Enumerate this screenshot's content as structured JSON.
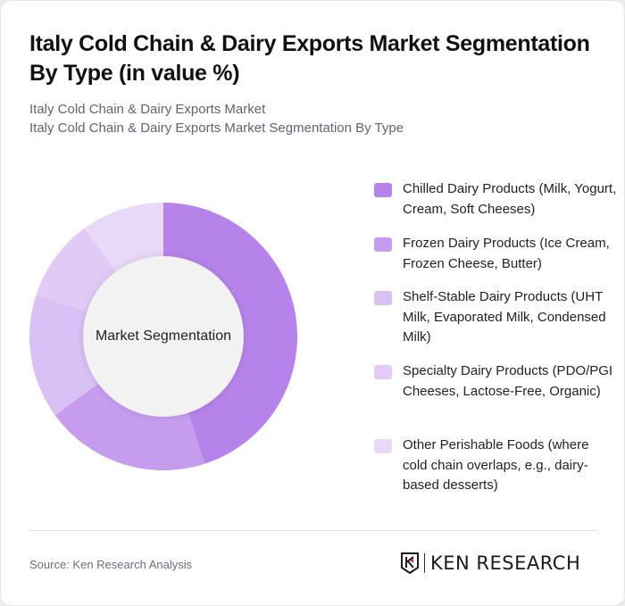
{
  "header": {
    "title": "Italy Cold Chain & Dairy Exports Market Segmentation By Type (in value %)",
    "subtitle_1": "Italy Cold Chain & Dairy Exports Market",
    "subtitle_2": "Italy Cold Chain & Dairy Exports Market Segmentation By Type"
  },
  "donut": {
    "center_label": "Market Segmentation"
  },
  "legend": {
    "items": [
      {
        "label": "Chilled Dairy Products (Milk, Yogurt, Cream, Soft Cheeses)",
        "color": "#b583ea"
      },
      {
        "label": "Frozen Dairy Products (Ice Cream, Frozen Cheese, Butter)",
        "color": "#c59cee"
      },
      {
        "label": "Shelf-Stable Dairy Products (UHT Milk, Evaporated Milk, Condensed Milk)",
        "color": "#d9c0f5"
      },
      {
        "label": "Specialty Dairy Products (PDO/PGI Cheeses, Lactose-Free, Organic)",
        "color": "#e1cbf6"
      },
      {
        "label": "Other Perishable Foods (where cold chain overlaps, e.g., dairy-based desserts)",
        "color": "#e8d9f9"
      }
    ]
  },
  "footer": {
    "source": "Source: Ken Research Analysis",
    "logo_text": "KEN RESEARCH"
  },
  "chart_data": {
    "type": "pie",
    "title": "Italy Cold Chain & Dairy Exports Market Segmentation By Type (in value %)",
    "subtitle": "Italy Cold Chain & Dairy Exports Market Segmentation By Type",
    "center_label": "Market Segmentation",
    "donut": true,
    "categories": [
      "Chilled Dairy Products (Milk, Yogurt, Cream, Soft Cheeses)",
      "Frozen Dairy Products (Ice Cream, Frozen Cheese, Butter)",
      "Shelf-Stable Dairy Products (UHT Milk, Evaporated Milk, Condensed Milk)",
      "Specialty Dairy Products (PDO/PGI Cheeses, Lactose-Free, Organic)",
      "Other Perishable Foods (where cold chain overlaps, e.g., dairy-based desserts)"
    ],
    "values": [
      45,
      20,
      15,
      10,
      10
    ],
    "colors": [
      "#b583ea",
      "#c59cee",
      "#d9c0f5",
      "#e1cbf6",
      "#e8d9f9"
    ],
    "unit": "%",
    "legend_position": "right",
    "source": "Source: Ken Research Analysis"
  }
}
